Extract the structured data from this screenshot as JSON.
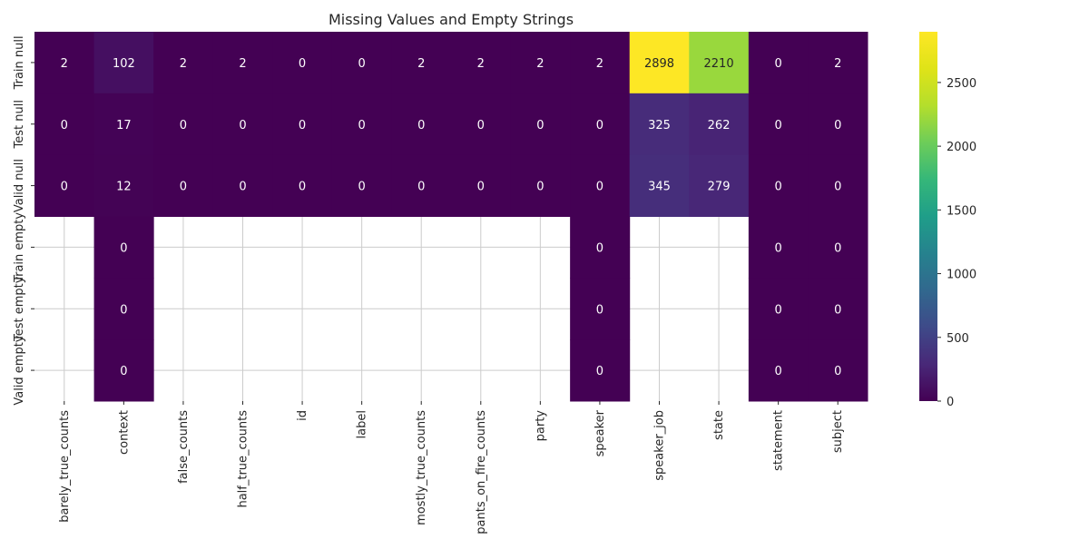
{
  "chart_data": {
    "type": "heatmap",
    "title": "Missing Values and Empty Strings",
    "xlabel": "",
    "ylabel": "",
    "x_categories": [
      "barely_true_counts",
      "context",
      "false_counts",
      "half_true_counts",
      "id",
      "label",
      "mostly_true_counts",
      "pants_on_fire_counts",
      "party",
      "speaker",
      "speaker_job",
      "state",
      "statement",
      "subject"
    ],
    "y_categories": [
      "Train null",
      "Test null",
      "Valid null",
      "Train empty",
      "Test empty",
      "Valid empty"
    ],
    "values": [
      [
        2,
        102,
        2,
        2,
        0,
        0,
        2,
        2,
        2,
        2,
        2898,
        2210,
        0,
        2
      ],
      [
        0,
        17,
        0,
        0,
        0,
        0,
        0,
        0,
        0,
        0,
        325,
        262,
        0,
        0
      ],
      [
        0,
        12,
        0,
        0,
        0,
        0,
        0,
        0,
        0,
        0,
        345,
        279,
        0,
        0
      ],
      [
        null,
        0,
        null,
        null,
        null,
        null,
        null,
        null,
        null,
        0,
        null,
        null,
        0,
        0
      ],
      [
        null,
        0,
        null,
        null,
        null,
        null,
        null,
        null,
        null,
        0,
        null,
        null,
        0,
        0
      ],
      [
        null,
        0,
        null,
        null,
        null,
        null,
        null,
        null,
        null,
        0,
        null,
        null,
        0,
        0
      ]
    ],
    "colormap": "viridis",
    "value_range": [
      0,
      2898
    ],
    "colorbar_ticks": [
      0,
      500,
      1000,
      1500,
      2000,
      2500
    ],
    "annotated": true,
    "grid": true,
    "colors": {
      "grid": "#cccccc",
      "annotation_dark_bg": "#ffffff",
      "annotation_light_bg": "#262626",
      "text": "#262626"
    }
  }
}
